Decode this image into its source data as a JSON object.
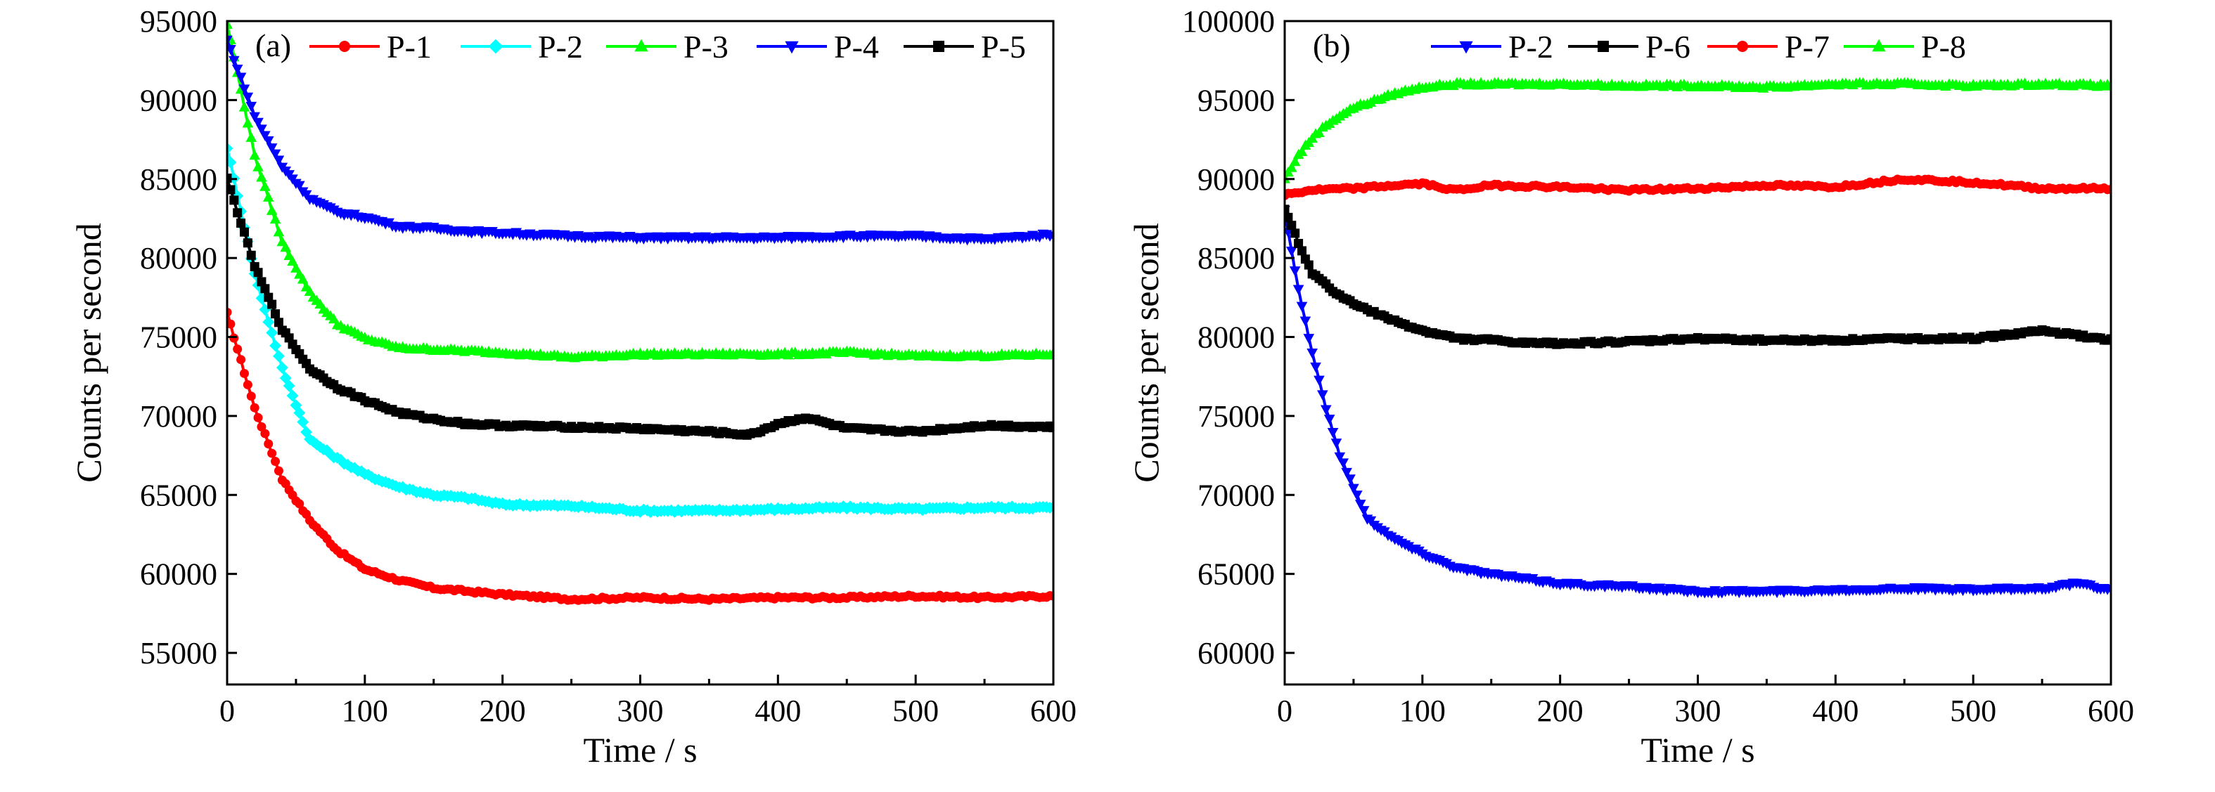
{
  "chart_data": [
    {
      "type": "line",
      "panel_label": "(a)",
      "xlabel": "Time / s",
      "ylabel": "Counts per second",
      "xlim": [
        0,
        600
      ],
      "ylim": [
        53000,
        95000
      ],
      "xticks": [
        0,
        100,
        200,
        300,
        400,
        500,
        600
      ],
      "yticks": [
        55000,
        60000,
        65000,
        70000,
        75000,
        80000,
        85000,
        90000,
        95000
      ],
      "legend_position": "top",
      "series": [
        {
          "name": "P-1",
          "color": "#ff0000",
          "marker": "circle",
          "x": [
            0,
            20,
            40,
            60,
            80,
            100,
            125,
            150,
            175,
            200,
            250,
            300,
            350,
            400,
            450,
            500,
            550,
            600
          ],
          "y": [
            76500,
            70500,
            66000,
            63400,
            61500,
            60300,
            59600,
            59100,
            58900,
            58700,
            58400,
            58500,
            58400,
            58500,
            58500,
            58600,
            58500,
            58600
          ]
        },
        {
          "name": "P-2",
          "color": "#00ffff",
          "marker": "diamond",
          "x": [
            0,
            20,
            40,
            60,
            80,
            100,
            125,
            150,
            175,
            200,
            250,
            300,
            350,
            400,
            450,
            500,
            550,
            600
          ],
          "y": [
            87000,
            79000,
            73000,
            68500,
            67300,
            66300,
            65500,
            65000,
            64800,
            64400,
            64300,
            64000,
            64000,
            64100,
            64200,
            64100,
            64200,
            64200
          ]
        },
        {
          "name": "P-3",
          "color": "#00ff00",
          "marker": "triangle-up",
          "x": [
            0,
            20,
            40,
            60,
            80,
            100,
            125,
            150,
            175,
            200,
            250,
            300,
            350,
            400,
            450,
            500,
            550,
            600
          ],
          "y": [
            94800,
            86500,
            81000,
            77800,
            75800,
            74900,
            74300,
            74200,
            74100,
            74000,
            73700,
            73900,
            73900,
            73900,
            74000,
            73800,
            73800,
            73900
          ]
        },
        {
          "name": "P-4",
          "color": "#0000ff",
          "marker": "triangle-down",
          "x": [
            0,
            20,
            40,
            60,
            80,
            100,
            125,
            150,
            175,
            200,
            250,
            300,
            350,
            400,
            450,
            500,
            550,
            600
          ],
          "y": [
            93800,
            89000,
            85800,
            83800,
            82900,
            82600,
            82000,
            81900,
            81700,
            81600,
            81400,
            81300,
            81300,
            81300,
            81400,
            81400,
            81200,
            81500
          ]
        },
        {
          "name": "P-5",
          "color": "#000000",
          "marker": "square",
          "x": [
            0,
            20,
            40,
            60,
            80,
            100,
            125,
            150,
            175,
            200,
            250,
            300,
            350,
            380,
            400,
            420,
            450,
            500,
            550,
            600
          ],
          "y": [
            85000,
            79500,
            75500,
            73000,
            71800,
            71000,
            70200,
            69800,
            69500,
            69400,
            69300,
            69200,
            69000,
            68800,
            69500,
            69900,
            69200,
            69000,
            69400,
            69300
          ]
        }
      ]
    },
    {
      "type": "line",
      "panel_label": "(b)",
      "xlabel": "Time / s",
      "ylabel": "Counts per second",
      "xlim": [
        0,
        600
      ],
      "ylim": [
        58000,
        100000
      ],
      "xticks": [
        0,
        100,
        200,
        300,
        400,
        500,
        600
      ],
      "yticks": [
        60000,
        65000,
        70000,
        75000,
        80000,
        85000,
        90000,
        95000,
        100000
      ],
      "legend_position": "top",
      "series": [
        {
          "name": "P-2",
          "color": "#0000ff",
          "marker": "triangle-down",
          "x": [
            0,
            10,
            20,
            30,
            40,
            50,
            60,
            80,
            100,
            125,
            150,
            175,
            200,
            250,
            300,
            350,
            400,
            450,
            500,
            550,
            575,
            600
          ],
          "y": [
            88000,
            83000,
            79000,
            75500,
            72500,
            70500,
            68500,
            67200,
            66300,
            65400,
            65000,
            64700,
            64400,
            64200,
            63900,
            63900,
            64000,
            64100,
            64000,
            64100,
            64400,
            64000
          ]
        },
        {
          "name": "P-6",
          "color": "#000000",
          "marker": "square",
          "x": [
            0,
            20,
            40,
            60,
            80,
            100,
            125,
            150,
            175,
            200,
            250,
            300,
            350,
            400,
            450,
            500,
            550,
            600
          ],
          "y": [
            88000,
            84000,
            82600,
            81700,
            81000,
            80400,
            79900,
            79800,
            79600,
            79600,
            79700,
            79900,
            79800,
            79800,
            79900,
            79900,
            80400,
            79800
          ]
        },
        {
          "name": "P-7",
          "color": "#ff0000",
          "marker": "circle",
          "x": [
            0,
            20,
            50,
            80,
            100,
            125,
            150,
            200,
            250,
            300,
            350,
            400,
            450,
            500,
            550,
            600
          ],
          "y": [
            89000,
            89300,
            89400,
            89600,
            89700,
            89300,
            89600,
            89500,
            89300,
            89400,
            89600,
            89500,
            90000,
            89800,
            89400,
            89400
          ]
        },
        {
          "name": "P-8",
          "color": "#00ff00",
          "marker": "triangle-up",
          "x": [
            0,
            10,
            20,
            30,
            40,
            50,
            60,
            80,
            100,
            125,
            150,
            200,
            250,
            300,
            350,
            400,
            450,
            500,
            550,
            600
          ],
          "y": [
            90000,
            91500,
            92600,
            93400,
            94000,
            94500,
            94800,
            95400,
            95800,
            96000,
            96000,
            96000,
            95900,
            95900,
            95800,
            96000,
            96000,
            95900,
            96000,
            95900
          ]
        }
      ]
    }
  ]
}
